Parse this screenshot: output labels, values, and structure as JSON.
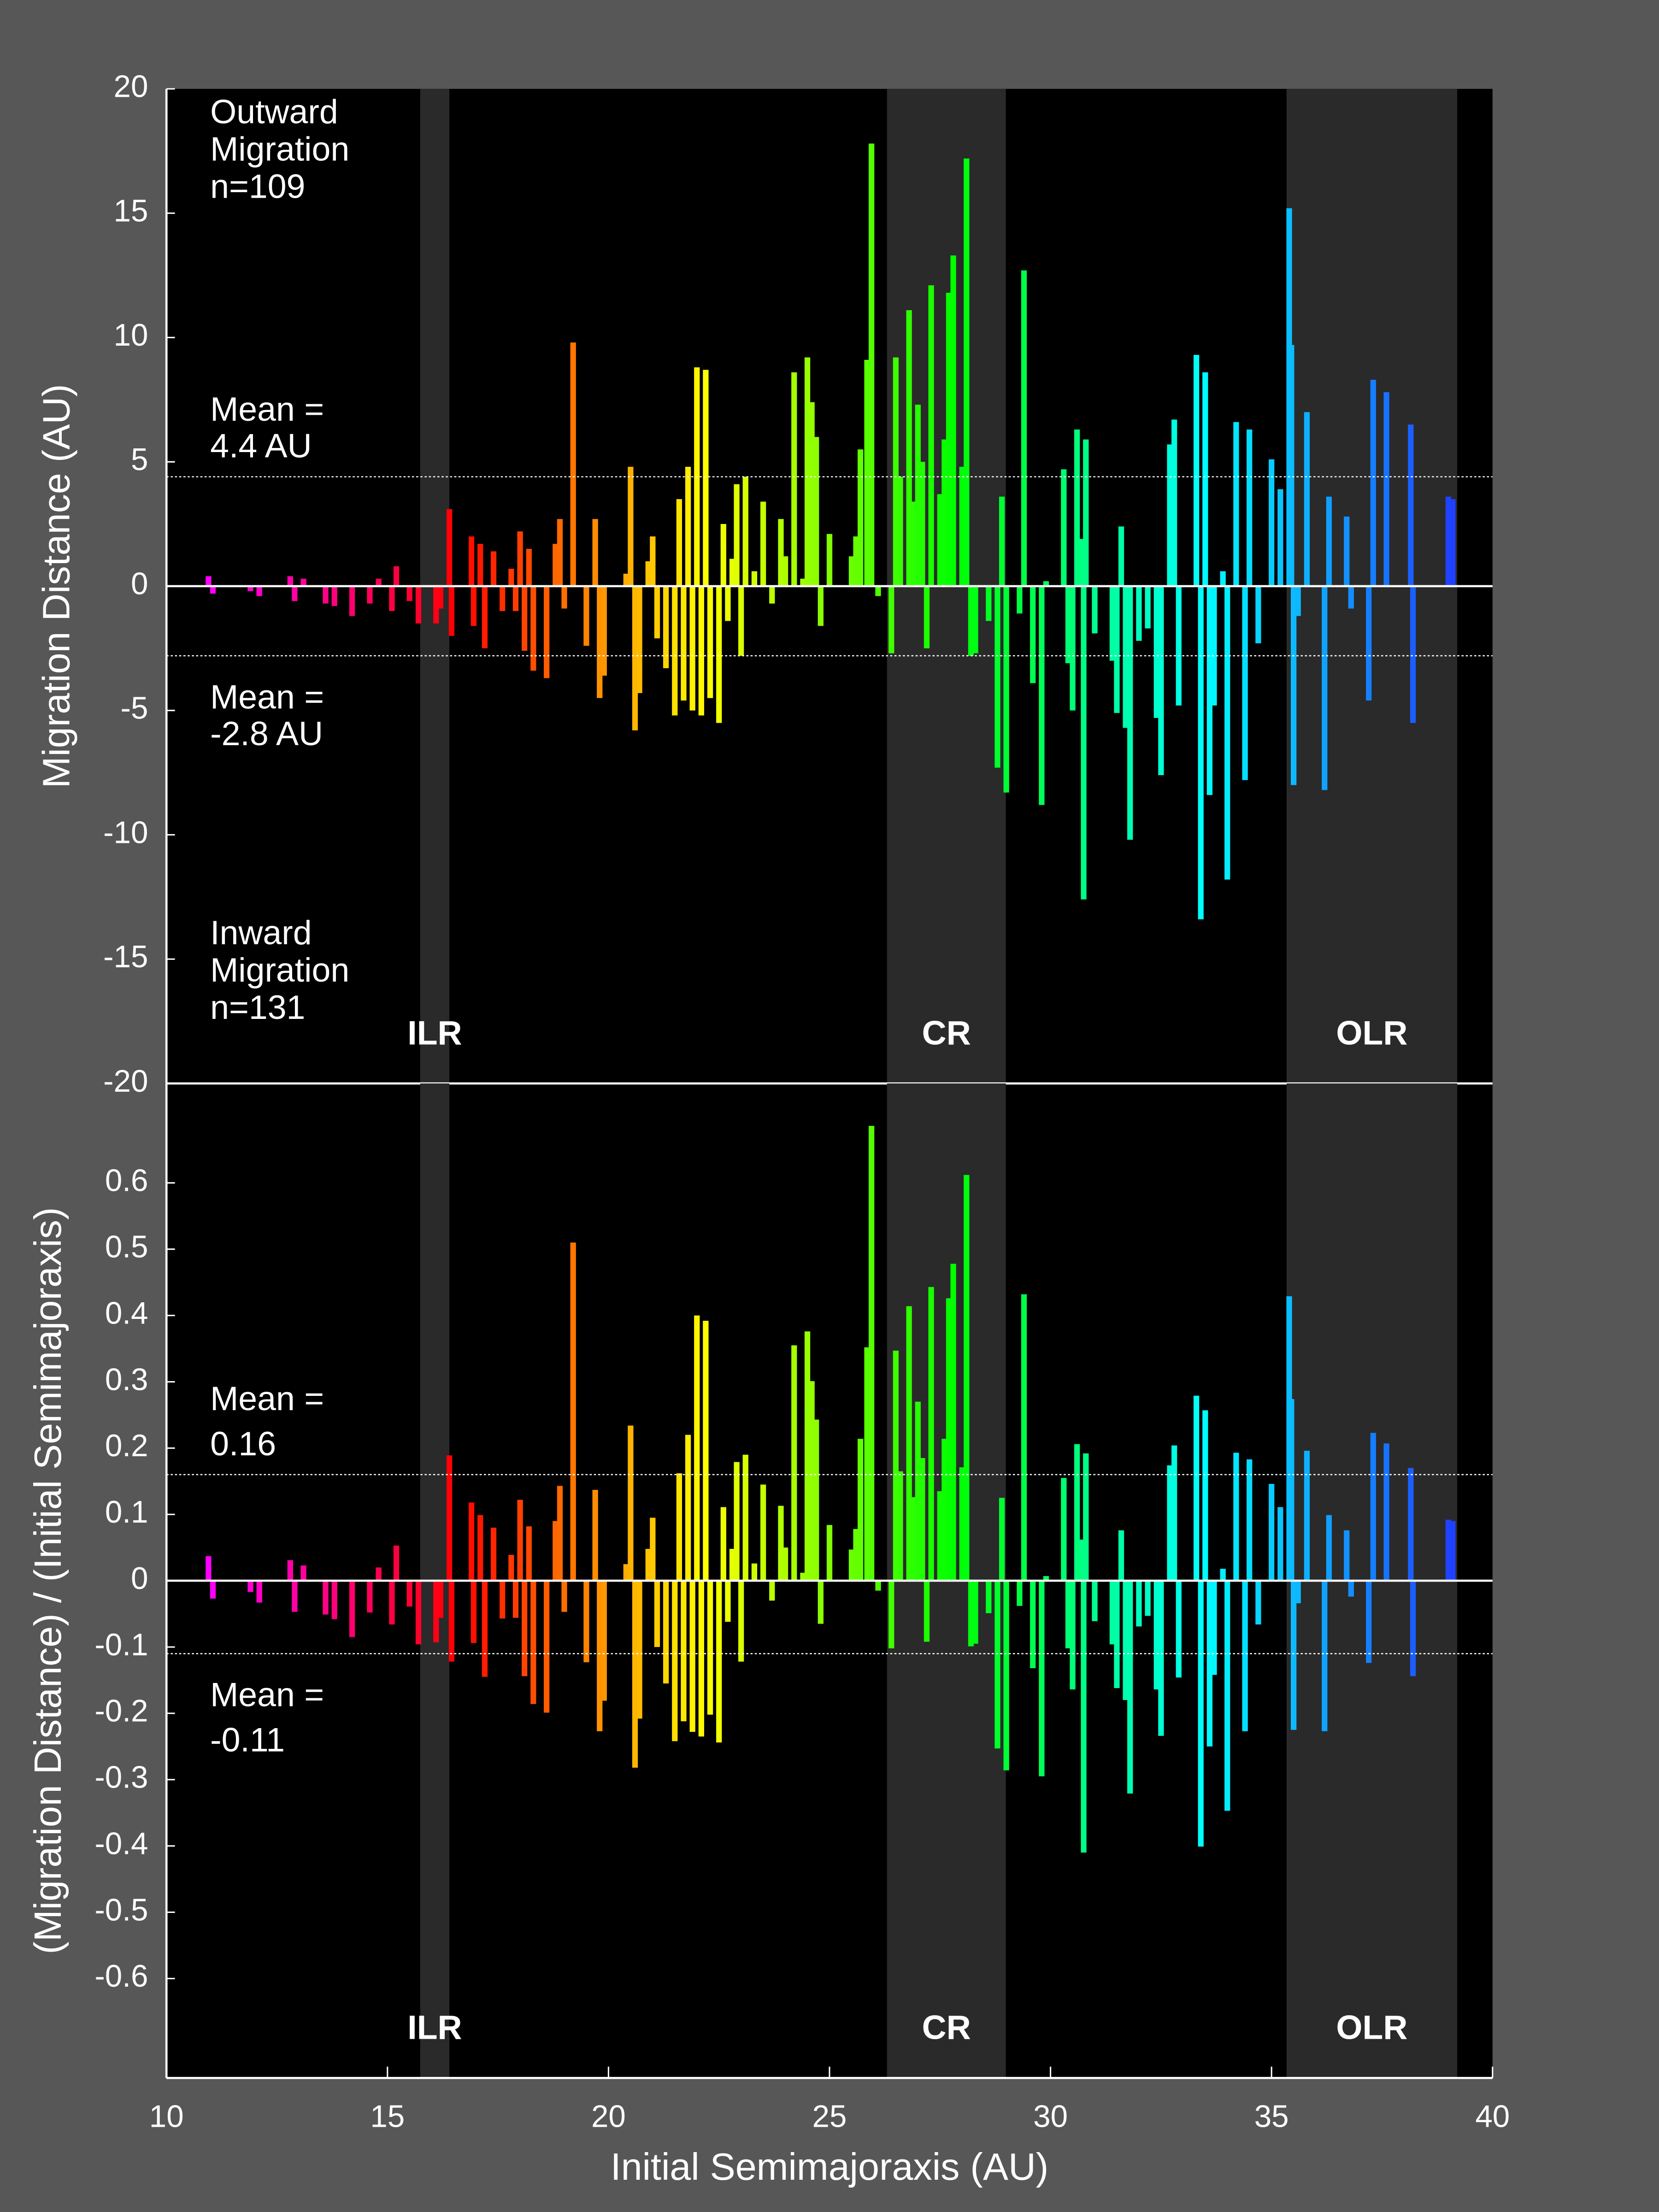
{
  "chart_data": [
    {
      "type": "bar",
      "ylabel": "Migration Distance (AU)",
      "xlim": [
        10,
        40
      ],
      "ylim": [
        -20,
        20
      ],
      "yticks": [
        20,
        15,
        10,
        5,
        0,
        -5,
        -10,
        -15,
        -20
      ],
      "zero_line": true,
      "colormap": [
        "#ff00ff",
        "#ff0000",
        "#ffff00",
        "#00ff00",
        "#00ffff",
        "#2040ff"
      ],
      "regions": [
        {
          "label": "ILR",
          "range": [
            15.74,
            16.4
          ]
        },
        {
          "label": "CR",
          "range": [
            26.3,
            28.99
          ]
        },
        {
          "label": "OLR",
          "range": [
            35.34,
            39.2
          ]
        }
      ],
      "mean_lines": [
        {
          "value": 4.4,
          "lines": [
            "Mean =",
            "4.4 AU"
          ]
        },
        {
          "value": -2.8,
          "lines": [
            "Mean =",
            "-2.8 AU"
          ]
        }
      ],
      "annotations": [
        {
          "lines": [
            "Outward",
            "Migration",
            "n=109"
          ]
        },
        {
          "lines": [
            "Inward",
            "Migration",
            "n=131"
          ]
        }
      ],
      "x": [
        10.95,
        11.05,
        11.9,
        12.1,
        12.8,
        12.9,
        13.1,
        13.6,
        13.8,
        14.2,
        14.6,
        14.8,
        15.1,
        15.2,
        15.5,
        15.7,
        16.1,
        16.2,
        16.4,
        16.45,
        16.9,
        16.95,
        17.1,
        17.2,
        17.4,
        17.6,
        17.8,
        17.9,
        18.0,
        18.1,
        18.2,
        18.3,
        18.6,
        18.8,
        18.9,
        19.0,
        19.2,
        19.5,
        19.7,
        19.8,
        19.9,
        20.4,
        20.5,
        20.6,
        20.7,
        20.9,
        21.0,
        21.1,
        21.3,
        21.5,
        21.6,
        21.7,
        21.8,
        21.9,
        22.0,
        22.1,
        22.2,
        22.3,
        22.5,
        22.6,
        22.7,
        22.8,
        22.9,
        23.0,
        23.1,
        23.3,
        23.5,
        23.7,
        23.9,
        24.0,
        24.2,
        24.4,
        24.5,
        24.6,
        24.7,
        24.8,
        25.0,
        25.5,
        25.6,
        25.7,
        25.85,
        25.95,
        26.1,
        26.4,
        26.5,
        26.6,
        26.8,
        26.9,
        27.0,
        27.1,
        27.2,
        27.3,
        27.5,
        27.6,
        27.7,
        27.8,
        28.0,
        28.1,
        28.2,
        28.3,
        28.6,
        28.8,
        28.9,
        29.0,
        29.3,
        29.4,
        29.6,
        29.8,
        29.9,
        30.3,
        30.4,
        30.5,
        30.6,
        30.7,
        30.75,
        30.8,
        31.0,
        31.4,
        31.5,
        31.6,
        31.7,
        31.8,
        32.0,
        32.2,
        32.4,
        32.5,
        32.7,
        32.8,
        32.9,
        33.3,
        33.4,
        33.5,
        33.6,
        33.7,
        33.9,
        34.0,
        34.2,
        34.4,
        34.5,
        34.7,
        35.0,
        35.2,
        35.4,
        35.45,
        35.5,
        35.6,
        35.8,
        36.2,
        36.3,
        36.7,
        36.8,
        37.2,
        37.3,
        37.6,
        38.2,
        38.15,
        39.0,
        39.1
      ],
      "values": [
        0.4,
        -0.3,
        -0.2,
        -0.4,
        0.4,
        -0.6,
        0.3,
        -0.7,
        -0.8,
        -1.2,
        -0.7,
        0.3,
        -1.0,
        0.8,
        -0.6,
        -1.5,
        -1.5,
        -0.9,
        3.1,
        -2.0,
        2.0,
        -1.6,
        1.7,
        -2.5,
        1.4,
        -1.0,
        0.7,
        -1.0,
        2.2,
        -2.6,
        1.5,
        -3.4,
        -3.7,
        1.7,
        2.7,
        -0.9,
        9.8,
        -2.4,
        2.7,
        -4.5,
        -3.6,
        0.5,
        4.8,
        -5.8,
        -4.3,
        1.0,
        2.0,
        -2.1,
        -3.3,
        -5.2,
        3.5,
        -4.6,
        4.8,
        -5.0,
        8.8,
        -5.2,
        8.7,
        -4.5,
        -5.5,
        2.5,
        -1.4,
        1.1,
        4.1,
        -2.8,
        4.4,
        0.6,
        3.4,
        -0.7,
        2.7,
        1.2,
        8.6,
        0.3,
        9.2,
        7.4,
        6.0,
        -1.6,
        2.1,
        1.2,
        2.0,
        5.5,
        9.1,
        17.8,
        -0.4,
        -2.7,
        9.2,
        4.4,
        11.1,
        3.4,
        7.3,
        5.0,
        -2.5,
        12.1,
        3.7,
        5.9,
        11.8,
        13.3,
        4.8,
        17.2,
        -2.8,
        -2.7,
        -1.4,
        -7.3,
        3.6,
        -8.3,
        -1.1,
        12.7,
        -3.9,
        -8.8,
        0.2,
        4.7,
        -3.1,
        -5.0,
        6.3,
        1.9,
        -12.6,
        5.9,
        -1.9,
        -3.0,
        -5.1,
        2.4,
        -5.7,
        -10.2,
        -2.2,
        -1.7,
        -5.3,
        -7.6,
        5.7,
        6.7,
        -4.8,
        9.3,
        -13.4,
        8.6,
        -8.4,
        -4.8,
        0.6,
        -11.8,
        6.6,
        -7.8,
        6.3,
        -2.3,
        5.1,
        3.9,
        15.2,
        9.7,
        -8.0,
        -1.2,
        7.0,
        -8.2,
        3.6,
        2.8,
        -0.9,
        -4.6,
        8.3,
        7.8,
        -5.5,
        6.5,
        3.6,
        3.5
      ]
    },
    {
      "type": "bar",
      "ylabel": "(Migration Distance) / (Initial Semimajoraxis)",
      "xlabel": "Initial Semimajoraxis (AU)",
      "xlim": [
        10,
        40
      ],
      "xticks": [
        10,
        15,
        20,
        25,
        30,
        35,
        40
      ],
      "ylim": [
        -0.75,
        0.75
      ],
      "yticks": [
        0.6,
        0.5,
        0.4,
        0.3,
        0.2,
        0.1,
        0,
        -0.1,
        -0.2,
        -0.3,
        -0.4,
        -0.5,
        -0.6
      ],
      "zero_line": true,
      "colormap": [
        "#ff00ff",
        "#ff0000",
        "#ffff00",
        "#00ff00",
        "#00ffff",
        "#2040ff"
      ],
      "regions": [
        {
          "label": "ILR",
          "range": [
            15.74,
            16.4
          ]
        },
        {
          "label": "CR",
          "range": [
            26.3,
            28.99
          ]
        },
        {
          "label": "OLR",
          "range": [
            35.34,
            39.2
          ]
        }
      ],
      "mean_lines": [
        {
          "value": 0.16,
          "lines": [
            "Mean =",
            "0.16"
          ]
        },
        {
          "value": -0.11,
          "lines": [
            "Mean =",
            "-0.11"
          ]
        }
      ],
      "x": [
        10.95,
        11.05,
        11.9,
        12.1,
        12.8,
        12.9,
        13.1,
        13.6,
        13.8,
        14.2,
        14.6,
        14.8,
        15.1,
        15.2,
        15.5,
        15.7,
        16.1,
        16.2,
        16.4,
        16.45,
        16.9,
        16.95,
        17.1,
        17.2,
        17.4,
        17.6,
        17.8,
        17.9,
        18.0,
        18.1,
        18.2,
        18.3,
        18.6,
        18.8,
        18.9,
        19.0,
        19.2,
        19.5,
        19.7,
        19.8,
        19.9,
        20.4,
        20.5,
        20.6,
        20.7,
        20.9,
        21.0,
        21.1,
        21.3,
        21.5,
        21.6,
        21.7,
        21.8,
        21.9,
        22.0,
        22.1,
        22.2,
        22.3,
        22.5,
        22.6,
        22.7,
        22.8,
        22.9,
        23.0,
        23.1,
        23.3,
        23.5,
        23.7,
        23.9,
        24.0,
        24.2,
        24.4,
        24.5,
        24.6,
        24.7,
        24.8,
        25.0,
        25.5,
        25.6,
        25.7,
        25.85,
        25.95,
        26.1,
        26.4,
        26.5,
        26.6,
        26.8,
        26.9,
        27.0,
        27.1,
        27.2,
        27.3,
        27.5,
        27.6,
        27.7,
        27.8,
        28.0,
        28.1,
        28.2,
        28.3,
        28.6,
        28.8,
        28.9,
        29.0,
        29.3,
        29.4,
        29.6,
        29.8,
        29.9,
        30.3,
        30.4,
        30.5,
        30.6,
        30.7,
        30.75,
        30.8,
        31.0,
        31.4,
        31.5,
        31.6,
        31.7,
        31.8,
        32.0,
        32.2,
        32.4,
        32.5,
        32.7,
        32.8,
        32.9,
        33.3,
        33.4,
        33.5,
        33.6,
        33.7,
        33.9,
        34.0,
        34.2,
        34.4,
        34.5,
        34.7,
        35.0,
        35.2,
        35.4,
        35.45,
        35.5,
        35.6,
        35.8,
        36.2,
        36.3,
        36.7,
        36.8,
        37.2,
        37.3,
        37.6,
        38.2,
        38.15,
        39.0,
        39.1
      ],
      "values": [
        0.037,
        -0.027,
        -0.017,
        -0.033,
        0.031,
        -0.047,
        0.023,
        -0.051,
        -0.058,
        -0.085,
        -0.048,
        0.02,
        -0.066,
        0.053,
        -0.039,
        -0.096,
        -0.093,
        -0.056,
        0.189,
        -0.122,
        0.118,
        -0.094,
        0.099,
        -0.145,
        0.08,
        -0.057,
        0.039,
        -0.056,
        0.122,
        -0.144,
        0.082,
        -0.186,
        -0.199,
        0.09,
        0.143,
        -0.047,
        0.51,
        -0.123,
        0.137,
        -0.227,
        -0.181,
        0.025,
        0.234,
        -0.282,
        -0.208,
        0.048,
        0.095,
        -0.1,
        -0.155,
        -0.242,
        0.162,
        -0.212,
        0.22,
        -0.228,
        0.4,
        -0.235,
        0.392,
        -0.202,
        -0.244,
        0.111,
        -0.062,
        0.048,
        0.179,
        -0.122,
        0.19,
        0.026,
        0.145,
        -0.03,
        0.113,
        0.05,
        0.355,
        0.012,
        0.376,
        0.301,
        0.243,
        -0.065,
        0.084,
        0.047,
        0.078,
        0.214,
        0.352,
        0.686,
        -0.015,
        -0.102,
        0.347,
        0.165,
        0.414,
        0.126,
        0.27,
        0.185,
        -0.092,
        0.443,
        0.135,
        0.214,
        0.426,
        0.478,
        0.171,
        0.612,
        -0.099,
        -0.095,
        -0.049,
        -0.253,
        0.125,
        -0.286,
        -0.038,
        0.432,
        -0.132,
        -0.295,
        0.007,
        0.155,
        -0.102,
        -0.164,
        0.206,
        0.062,
        -0.41,
        0.192,
        -0.061,
        -0.096,
        -0.162,
        0.076,
        -0.18,
        -0.321,
        -0.069,
        -0.053,
        -0.164,
        -0.234,
        0.174,
        0.204,
        -0.146,
        0.279,
        -0.401,
        0.257,
        -0.25,
        -0.142,
        0.018,
        -0.347,
        0.193,
        -0.227,
        0.183,
        -0.066,
        0.146,
        0.111,
        0.429,
        0.274,
        -0.225,
        -0.034,
        0.196,
        -0.227,
        0.099,
        0.076,
        -0.024,
        -0.124,
        0.223,
        0.207,
        -0.144,
        0.17,
        0.092,
        0.09
      ]
    }
  ]
}
